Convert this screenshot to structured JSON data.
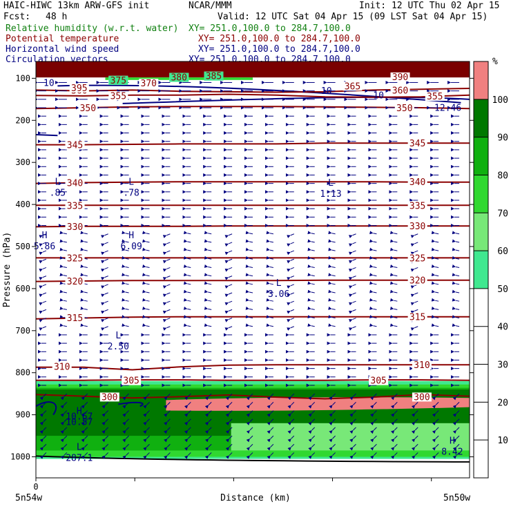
{
  "header": {
    "model": "HAIC-HIWC 13km ARW-GFS init",
    "org": "NCAR/MMM",
    "init": "Init: 12 UTC Thu 02 Apr 15",
    "fcst_label": "Fcst:",
    "fcst_value": "48 h",
    "valid": "Valid: 12 UTC Sat 04 Apr 15 (09 LST Sat 04 Apr 15)",
    "fields": [
      {
        "name": "Relative humidity (w.r.t. water)",
        "xy": "XY= 251.0,100.0 to 284.7,100.0",
        "color": "#108010"
      },
      {
        "name": "Potential temperature",
        "xy": "XY= 251.0,100.0 to 284.7,100.0",
        "color": "#8b0000"
      },
      {
        "name": "Horizontal wind speed",
        "xy": "XY= 251.0,100.0 to 284.7,100.0",
        "color": "#000080"
      },
      {
        "name": "Circulation vectors",
        "xy": "XY= 251.0,100.0 to 284.7,100.0",
        "color": "#000080"
      }
    ]
  },
  "chart_data": {
    "type": "cross-section",
    "xlabel": "Distance (km)",
    "ylabel": "Pressure (hPa)",
    "x_tick_zero": "0",
    "x_left_label": "5n54w",
    "x_right_label": "5n50w",
    "y_ticks": [
      100,
      200,
      300,
      400,
      500,
      600,
      700,
      800,
      900,
      1000
    ],
    "ylim": [
      1050,
      60
    ],
    "colorbar": {
      "unit": "%",
      "levels": [
        10,
        20,
        30,
        40,
        50,
        60,
        70,
        80,
        90,
        100
      ],
      "bins": [
        {
          "range": [
            50,
            60
          ],
          "color": "#40e890"
        },
        {
          "range": [
            60,
            70
          ],
          "color": "#78e878"
        },
        {
          "range": [
            70,
            80
          ],
          "color": "#30d830"
        },
        {
          "range": [
            80,
            90
          ],
          "color": "#10b010"
        },
        {
          "range": [
            90,
            100
          ],
          "color": "#007800"
        },
        {
          "range": [
            100,
            110
          ],
          "color": "#f08080"
        }
      ]
    },
    "theta_contours": [
      {
        "value": 300,
        "label": "300",
        "p": [
          852,
          856,
          860,
          857,
          853,
          858,
          862,
          858,
          852,
          856
        ]
      },
      {
        "value": 305,
        "label": "305",
        "p": [
          818,
          818,
          817,
          817,
          818,
          818,
          818,
          817,
          817,
          818
        ]
      },
      {
        "value": 310,
        "label": "310",
        "p": [
          787,
          787,
          793,
          786,
          782,
          781,
          781,
          781,
          781,
          781
        ]
      },
      {
        "value": 315,
        "label": "315",
        "p": [
          672,
          670,
          668,
          667,
          667,
          667,
          667,
          667,
          667,
          667
        ]
      },
      {
        "value": 320,
        "label": "320",
        "p": [
          583,
          582,
          581,
          581,
          581,
          581,
          580,
          580,
          580,
          580
        ]
      },
      {
        "value": 325,
        "label": "325",
        "p": [
          527,
          527,
          527,
          527,
          527,
          527,
          527,
          527,
          527,
          527
        ]
      },
      {
        "value": 330,
        "label": "330",
        "p": [
          453,
          452,
          452,
          452,
          451,
          451,
          451,
          451,
          451,
          451
        ]
      },
      {
        "value": 335,
        "label": "335",
        "p": [
          402,
          402,
          402,
          402,
          402,
          402,
          402,
          402,
          402,
          402
        ]
      },
      {
        "value": 340,
        "label": "340",
        "p": [
          350,
          348,
          347,
          346,
          346,
          346,
          346,
          346,
          347,
          347
        ]
      },
      {
        "value": 345,
        "label": "345",
        "p": [
          258,
          258,
          257,
          256,
          256,
          256,
          254,
          254,
          254,
          254
        ]
      },
      {
        "value": 350,
        "label": "350",
        "p": [
          172,
          170,
          168,
          167,
          167,
          167,
          168,
          169,
          170,
          172
        ]
      },
      {
        "value": 355,
        "label": "355",
        "p": [
          141,
          142,
          140,
          140,
          138,
          140,
          144,
          145,
          144,
          140
        ]
      },
      {
        "value": 360,
        "label": "360",
        "p": [
          128,
          130,
          128,
          131,
          132,
          133,
          132,
          128,
          126,
          124
        ]
      }
    ],
    "theta_labels": [
      {
        "text": "300",
        "x": 0.17,
        "p": 857
      },
      {
        "text": "300",
        "x": 0.89,
        "p": 857
      },
      {
        "text": "305",
        "x": 0.22,
        "p": 818
      },
      {
        "text": "305",
        "x": 0.79,
        "p": 818
      },
      {
        "text": "310",
        "x": 0.06,
        "p": 785
      },
      {
        "text": "310",
        "x": 0.89,
        "p": 781
      },
      {
        "text": "315",
        "x": 0.09,
        "p": 669
      },
      {
        "text": "315",
        "x": 0.88,
        "p": 667
      },
      {
        "text": "320",
        "x": 0.09,
        "p": 582
      },
      {
        "text": "320",
        "x": 0.88,
        "p": 580
      },
      {
        "text": "325",
        "x": 0.09,
        "p": 527
      },
      {
        "text": "325",
        "x": 0.88,
        "p": 527
      },
      {
        "text": "330",
        "x": 0.09,
        "p": 452
      },
      {
        "text": "330",
        "x": 0.88,
        "p": 451
      },
      {
        "text": "335",
        "x": 0.09,
        "p": 402
      },
      {
        "text": "335",
        "x": 0.88,
        "p": 402
      },
      {
        "text": "340",
        "x": 0.09,
        "p": 348
      },
      {
        "text": "340",
        "x": 0.88,
        "p": 346
      },
      {
        "text": "345",
        "x": 0.09,
        "p": 258
      },
      {
        "text": "345",
        "x": 0.88,
        "p": 254
      },
      {
        "text": "350",
        "x": 0.12,
        "p": 170
      },
      {
        "text": "350",
        "x": 0.85,
        "p": 170
      },
      {
        "text": "355",
        "x": 0.19,
        "p": 141
      },
      {
        "text": "355",
        "x": 0.92,
        "p": 142
      },
      {
        "text": "360",
        "x": 0.1,
        "p": 128
      },
      {
        "text": "360",
        "x": 0.84,
        "p": 128
      },
      {
        "text": "365",
        "x": 0.73,
        "p": 118
      },
      {
        "text": "370",
        "x": 0.26,
        "p": 111
      },
      {
        "text": "375",
        "x": 0.19,
        "p": 104
      },
      {
        "text": "380",
        "x": 0.33,
        "p": 97
      },
      {
        "text": "385",
        "x": 0.41,
        "p": 94
      },
      {
        "text": "390",
        "x": 0.84,
        "p": 96
      },
      {
        "text": "395",
        "x": 0.1,
        "p": 122
      }
    ],
    "rh_fill_labels": [
      {
        "text": "375",
        "x": 0.19,
        "p": 104
      },
      {
        "text": "380",
        "x": 0.33,
        "p": 97
      },
      {
        "text": "385",
        "x": 0.41,
        "p": 94
      }
    ],
    "wind_labels": [
      {
        "text": "10",
        "x": 0.03,
        "p": 110
      },
      {
        "text": "10",
        "x": 0.67,
        "p": 129
      },
      {
        "text": "10",
        "x": 0.79,
        "p": 140
      },
      {
        "text": "12.46",
        "x": 0.95,
        "p": 169
      },
      {
        "text": "10.67",
        "x": 0.1,
        "p": 903
      }
    ],
    "extrema": [
      {
        "type": "L",
        "value": ".85",
        "x": 0.05,
        "p": 360
      },
      {
        "type": "L",
        "value": ".78",
        "x": 0.22,
        "p": 360
      },
      {
        "type": "L",
        "value": "1.13",
        "x": 0.68,
        "p": 362
      },
      {
        "type": "H",
        "value": "5.86",
        "x": 0.02,
        "p": 487
      },
      {
        "type": "H",
        "value": "6.09",
        "x": 0.22,
        "p": 487
      },
      {
        "type": "L",
        "value": "3.06",
        "x": 0.56,
        "p": 600
      },
      {
        "type": "L",
        "value": "2.50",
        "x": 0.19,
        "p": 725
      },
      {
        "type": "H",
        "value": "10.57",
        "x": 0.1,
        "p": 905
      },
      {
        "type": "L",
        "value": "287.1",
        "x": 0.1,
        "p": 990
      },
      {
        "type": "H",
        "value": "8.42",
        "x": 0.96,
        "p": 975
      }
    ],
    "rh_regions": {
      "upper_stratosphere": {
        "color": "#7a0000",
        "p_top": 60,
        "p_bottom": 98
      },
      "low_level_moist": {
        "color": "#007800",
        "p_top": 840,
        "p_bottom": 1005
      },
      "cloud_layer": {
        "color": "#f08080",
        "x": [
          0.3,
          1.0
        ],
        "p_top": 860,
        "p_bottom": 890
      }
    },
    "grid": false,
    "legend": "right"
  }
}
